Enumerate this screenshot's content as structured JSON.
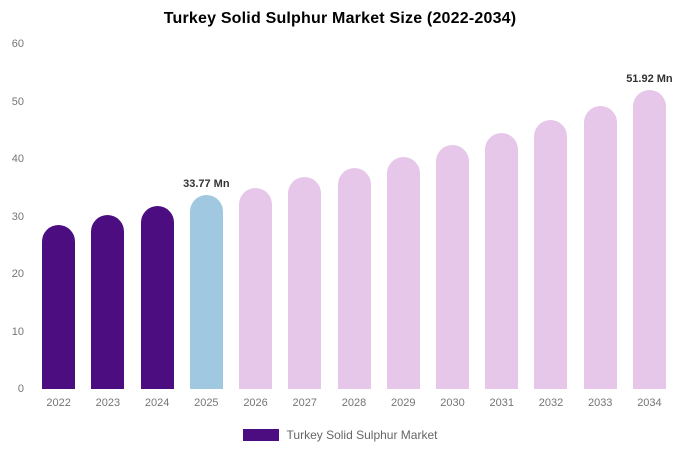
{
  "chart_data": {
    "type": "bar",
    "title": "Turkey Solid Sulphur Market Size (2022-2034)",
    "categories": [
      "2022",
      "2023",
      "2024",
      "2025",
      "2026",
      "2027",
      "2028",
      "2029",
      "2030",
      "2031",
      "2032",
      "2033",
      "2034"
    ],
    "values": [
      28.6,
      30.3,
      31.9,
      33.77,
      35.0,
      36.8,
      38.5,
      40.4,
      42.5,
      44.6,
      46.8,
      49.2,
      51.92
    ],
    "point_labels": [
      "",
      "",
      "",
      "33.77 Mn",
      "",
      "",
      "",
      "",
      "",
      "",
      "",
      "",
      "51.92 Mn"
    ],
    "bar_colors": [
      "#4B0D80",
      "#4B0D80",
      "#4B0D80",
      "#A1C8E1",
      "#E6C6E9",
      "#E6C6E9",
      "#E6C6E9",
      "#E6C6E9",
      "#E6C6E9",
      "#E6C6E9",
      "#E6C6E9",
      "#E6C6E9",
      "#E6C6E9"
    ],
    "xlabel": "",
    "ylabel": "",
    "ylim": [
      0,
      60
    ],
    "yticks": [
      0,
      10,
      20,
      30,
      40,
      50,
      60
    ],
    "grid": false,
    "legend_position": "bottom",
    "legend": [
      {
        "label": "Turkey Solid Sulphur Market",
        "color": "#4B0D80"
      }
    ]
  }
}
